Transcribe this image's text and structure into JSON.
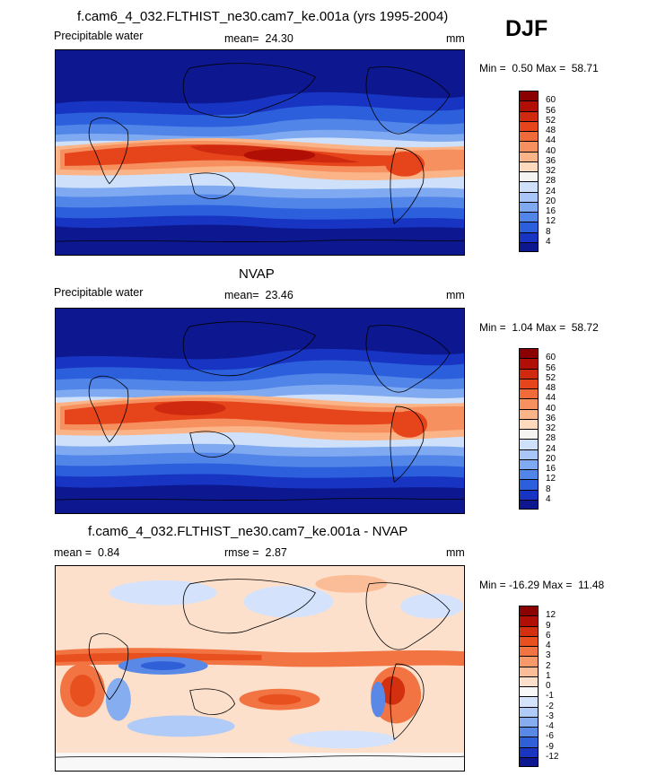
{
  "season": "DJF",
  "panels": [
    {
      "title": "f.cam6_4_032.FLTHIST_ne30.cam7_ke.001a (yrs 1995-2004)",
      "variable": "Precipitable water",
      "stat_label": "mean=",
      "stat_value": "24.30",
      "units": "mm",
      "min_label": "Min =",
      "min_value": "0.50",
      "max_label": "Max =",
      "max_value": "58.71",
      "colorbar": {
        "ticks": [
          "60",
          "56",
          "52",
          "48",
          "44",
          "40",
          "36",
          "32",
          "28",
          "24",
          "20",
          "16",
          "12",
          "8",
          "4"
        ],
        "colors": [
          "#8b0000",
          "#b10f05",
          "#cf2a0f",
          "#e6451c",
          "#f06a3a",
          "#f7905f",
          "#fbb487",
          "#fdd9bd",
          "#f6f4f3",
          "#cfe0fb",
          "#a8c6f7",
          "#7fa9f0",
          "#5285e8",
          "#2c5fdc",
          "#1735c2",
          "#0d1890"
        ]
      }
    },
    {
      "title": "NVAP",
      "variable": "Precipitable water",
      "stat_label": "mean=",
      "stat_value": "23.46",
      "units": "mm",
      "min_label": "Min =",
      "min_value": "1.04",
      "max_label": "Max =",
      "max_value": "58.72",
      "colorbar": {
        "ticks": [
          "60",
          "56",
          "52",
          "48",
          "44",
          "40",
          "36",
          "32",
          "28",
          "24",
          "20",
          "16",
          "12",
          "8",
          "4"
        ],
        "colors": [
          "#8b0000",
          "#b10f05",
          "#cf2a0f",
          "#e6451c",
          "#f06a3a",
          "#f7905f",
          "#fbb487",
          "#fdd9bd",
          "#f6f4f3",
          "#cfe0fb",
          "#a8c6f7",
          "#7fa9f0",
          "#5285e8",
          "#2c5fdc",
          "#1735c2",
          "#0d1890"
        ]
      }
    },
    {
      "title": "f.cam6_4_032.FLTHIST_ne30.cam7_ke.001a - NVAP",
      "stat1_label": "mean =",
      "stat1_value": "0.84",
      "stat2_label": "rmse =",
      "stat2_value": "2.87",
      "units": "mm",
      "min_label": "Min =",
      "min_value": "-16.29",
      "max_label": "Max =",
      "max_value": "11.48",
      "colorbar": {
        "ticks": [
          "12",
          "9",
          "6",
          "4",
          "3",
          "2",
          "1",
          "0",
          "-1",
          "-2",
          "-3",
          "-4",
          "-6",
          "-9",
          "-12"
        ],
        "colors": [
          "#8b0000",
          "#b10f05",
          "#d2300f",
          "#e8501f",
          "#f27443",
          "#f8996a",
          "#fbbd98",
          "#fde0cb",
          "#f8f8f8",
          "#d4e3fb",
          "#b0cbf7",
          "#86adf0",
          "#5a88e6",
          "#3060d8",
          "#1a36c0",
          "#0d1890"
        ]
      }
    }
  ]
}
